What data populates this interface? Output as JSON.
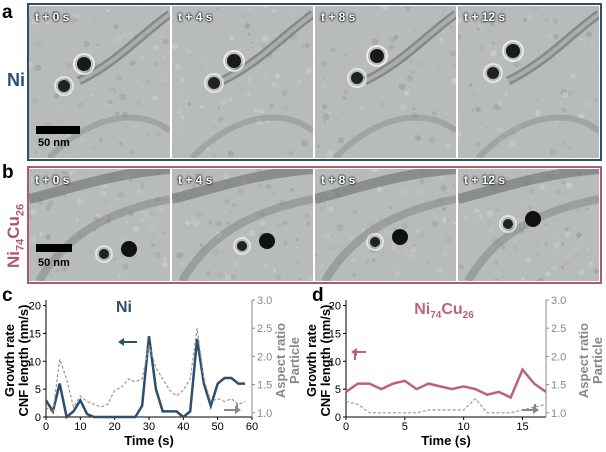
{
  "panels": {
    "a": {
      "label": "a",
      "side_label": "Ni",
      "frame_color": "#2e4e6e",
      "times": [
        "t + 0 s",
        "t + 4 s",
        "t + 8 s",
        "t + 12 s"
      ],
      "scale": "50 nm"
    },
    "b": {
      "label": "b",
      "side_label_main": "Ni",
      "side_label_sub1": "74",
      "side_label_mid": "Cu",
      "side_label_sub2": "26",
      "frame_color": "#b05a72",
      "times": [
        "t + 0 s",
        "t + 4 s",
        "t + 8 s",
        "t + 12 s"
      ],
      "scale": "50 nm"
    },
    "c": {
      "label": "c"
    },
    "d": {
      "label": "d"
    }
  },
  "chart_data": [
    {
      "type": "line",
      "title": "Ni",
      "title_color": "#2e4e6e",
      "xlabel": "Time (s)",
      "ylabel_left": [
        "Growth rate",
        "CNF length (nm/s)"
      ],
      "ylabel_right": [
        "Aspect ratio",
        "Particle"
      ],
      "xlim": [
        0,
        60
      ],
      "ylim_left": [
        0,
        21
      ],
      "ylim_right": [
        0.925,
        3.0
      ],
      "xticks": [
        0,
        10,
        20,
        30,
        40,
        50,
        60
      ],
      "yticks_left": [
        0,
        5,
        10,
        15,
        20
      ],
      "yticks_right": [
        1.0,
        1.5,
        2.0,
        2.5,
        3.0
      ],
      "series": [
        {
          "axis": "left",
          "style": "solid",
          "color": "#2e4e6e",
          "x": [
            0,
            2,
            4,
            6,
            8,
            10,
            12,
            14,
            16,
            18,
            20,
            22,
            24,
            26,
            28,
            30,
            32,
            34,
            36,
            38,
            40,
            42,
            44,
            46,
            48,
            50,
            52,
            54,
            56,
            58
          ],
          "y": [
            3,
            1,
            6,
            0,
            1,
            3,
            0.5,
            0,
            0,
            0,
            0,
            0,
            0,
            0,
            2,
            14.5,
            5,
            1,
            1,
            1,
            0,
            1,
            14,
            6,
            2,
            6,
            7,
            7,
            6,
            6
          ]
        },
        {
          "axis": "right",
          "style": "dashed",
          "color": "#999999",
          "x": [
            0,
            2,
            4,
            6,
            8,
            10,
            12,
            14,
            16,
            18,
            20,
            22,
            24,
            26,
            28,
            30,
            32,
            34,
            36,
            38,
            40,
            42,
            44,
            46,
            48,
            50,
            52,
            54,
            56,
            58
          ],
          "y": [
            1.1,
            1.0,
            1.95,
            1.6,
            1.1,
            1.3,
            1.2,
            1.15,
            1.1,
            1.15,
            1.4,
            1.45,
            1.6,
            1.55,
            1.6,
            2.2,
            1.8,
            1.6,
            1.4,
            1.3,
            1.4,
            1.6,
            2.5,
            1.6,
            1.2,
            1.25,
            1.2,
            1.25,
            1.15,
            1.2
          ]
        }
      ]
    },
    {
      "type": "line",
      "title_main": "Ni",
      "title_sub1": "74",
      "title_mid": "Cu",
      "title_sub2": "26",
      "title_color": "#c06080",
      "xlabel": "Time (s)",
      "ylabel_left": [
        "Growth rate",
        "CNF length (nm/s)"
      ],
      "ylabel_right": [
        "Aspect ratio",
        "Particle"
      ],
      "xlim": [
        0,
        17
      ],
      "ylim_left": [
        0,
        21
      ],
      "ylim_right": [
        0.925,
        3.0
      ],
      "xticks": [
        0,
        5,
        10,
        15
      ],
      "yticks_left": [
        0,
        5,
        10,
        15,
        20
      ],
      "yticks_right": [
        1.0,
        1.5,
        2.0,
        2.5,
        3.0
      ],
      "series": [
        {
          "axis": "left",
          "style": "solid",
          "color": "#c06080",
          "x": [
            0,
            1,
            2,
            3,
            4,
            5,
            6,
            7,
            8,
            9,
            10,
            11,
            12,
            13,
            14,
            15,
            16,
            17
          ],
          "y": [
            4.5,
            6,
            6,
            5,
            6,
            6.5,
            5,
            6,
            5.5,
            5,
            5.5,
            5,
            4,
            4.5,
            3.5,
            8.5,
            6,
            4.5
          ]
        },
        {
          "axis": "right",
          "style": "dashed",
          "color": "#999999",
          "x": [
            0,
            1,
            2,
            3,
            4,
            5,
            6,
            7,
            8,
            9,
            10,
            11,
            12,
            13,
            14,
            15,
            16,
            17
          ],
          "y": [
            1.2,
            1.15,
            1.0,
            1.0,
            1.0,
            1.0,
            1.0,
            1.05,
            1.05,
            1.05,
            1.05,
            1.25,
            1.0,
            1.0,
            1.0,
            1.05,
            1.1,
            1.15
          ]
        }
      ]
    }
  ]
}
